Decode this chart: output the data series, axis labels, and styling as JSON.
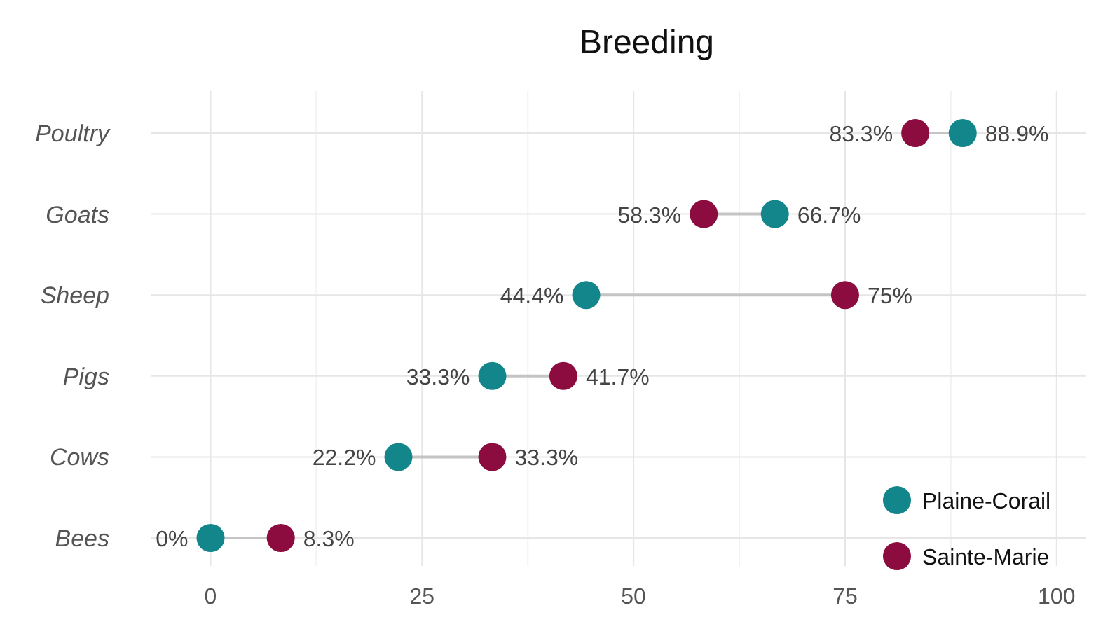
{
  "chart_data": {
    "type": "scatter",
    "orientation": "horizontal",
    "title": "Breeding",
    "categories": [
      "Poultry",
      "Goats",
      "Sheep",
      "Pigs",
      "Cows",
      "Bees"
    ],
    "series": [
      {
        "name": "Plaine-Corail",
        "color": "#13868c",
        "values": [
          88.9,
          66.7,
          44.4,
          33.3,
          22.2,
          0
        ],
        "value_labels": [
          "88.9%",
          "66.7%",
          "44.4%",
          "33.3%",
          "22.2%",
          "0%"
        ]
      },
      {
        "name": "Sainte-Marie",
        "color": "#8c0c3f",
        "values": [
          83.3,
          58.3,
          75,
          41.7,
          33.3,
          8.3
        ],
        "value_labels": [
          "83.3%",
          "58.3%",
          "75%",
          "41.7%",
          "33.3%",
          "8.3%"
        ]
      }
    ],
    "xlim": [
      -7,
      103.5
    ],
    "xticks": [
      0,
      25,
      50,
      75,
      100
    ],
    "grid": true,
    "legend": "bottom right",
    "marker": "circle"
  }
}
